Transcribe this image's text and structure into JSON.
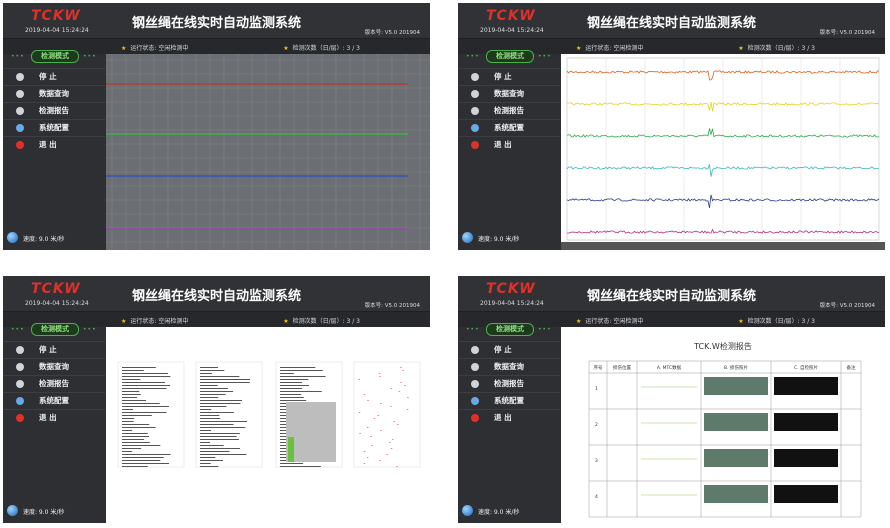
{
  "header": {
    "logo": "TCKW",
    "datetime": "2019-04-04 15:24:24",
    "title": "钢丝绳在线实时自动监测系统",
    "version": "版本号: V5.0 201904"
  },
  "mode": "检测模式",
  "status": "运行状态:  空闲检测中",
  "count": "检测次数（日/层）:   3 / 3",
  "menu": [
    "停 止",
    "数据查询",
    "检测报告",
    "系统配置",
    "退 出"
  ],
  "speed": "速度: 9.0 米/秒",
  "report": {
    "title": "TCK.W检测报告",
    "columns": [
      "序号",
      "损伤位置",
      "A. MTC数据",
      "B. 损伤照片",
      "C. 自检照片",
      "备注"
    ],
    "rows": [
      "1",
      "2",
      "3",
      "4"
    ]
  }
}
